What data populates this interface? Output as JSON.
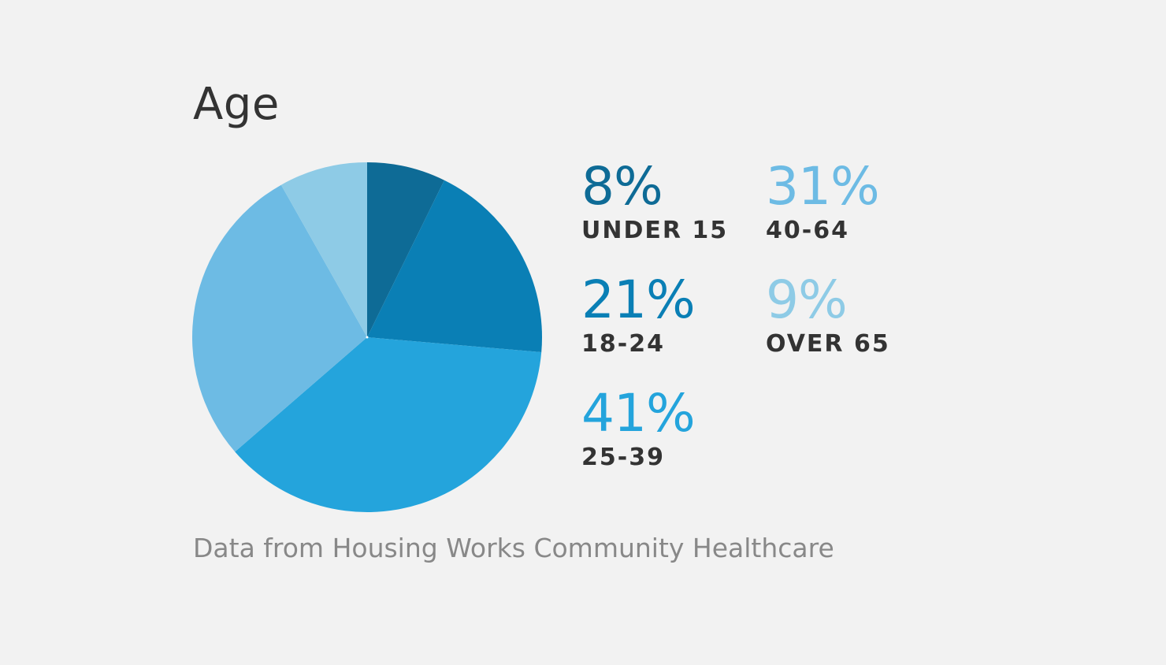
{
  "title": "Age",
  "source_note": "Data from Housing Works Community Healthcare",
  "chart_data": {
    "type": "pie",
    "title": "Age",
    "slices": [
      {
        "label": "UNDER 15",
        "value": 8,
        "display": "8%",
        "color": "#0e6b96"
      },
      {
        "label": "18-24",
        "value": 21,
        "display": "21%",
        "color": "#0a7fb5"
      },
      {
        "label": "25-39",
        "value": 41,
        "display": "41%",
        "color": "#24a4dc"
      },
      {
        "label": "40-64",
        "value": 31,
        "display": "31%",
        "color": "#6dbbe4"
      },
      {
        "label": "OVER 65",
        "value": 9,
        "display": "9%",
        "color": "#8ecbe6"
      }
    ],
    "start_angle_deg": 0,
    "direction": "clockwise",
    "legend_placement": "right"
  }
}
